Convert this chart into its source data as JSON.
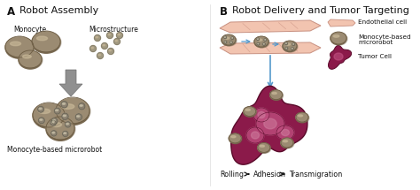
{
  "bg_color": "#ffffff",
  "label_a": "A",
  "title_a": "Robot Assembly",
  "label_b": "B",
  "title_b": "Robot Delivery and Tumor Targeting",
  "label_monocyte": "Monocyte",
  "label_microstructure": "Microstructure",
  "label_monocyte_based": "Monocyte-based microrobot",
  "label_rolling": "Rolling",
  "label_adhesion": "Adhesion",
  "label_transmigration": "Transmigration",
  "legend_endothelial": "Endothelial cell",
  "legend_microrobot_1": "Monocyte-based",
  "legend_microrobot_2": "microrobot",
  "legend_tumor": "Tumor Cell",
  "monocyte_color": "#9B8B72",
  "monocyte_dark": "#6B5B42",
  "monocyte_highlight": "#C8B898",
  "endothelial_fill": "#F2C4B0",
  "endothelial_line": "#C89080",
  "tumor_color": "#8B1A4A",
  "tumor_dark": "#5A0A2A",
  "tumor_inner1": "#C05080",
  "tumor_inner2": "#D080A0",
  "arrow_color": "#909090",
  "arrow_dark": "#707070",
  "small_dot_color": "#A09880",
  "blue_arrow": "#5599CC",
  "text_color": "#111111",
  "divider_color": "#DDDDDD"
}
